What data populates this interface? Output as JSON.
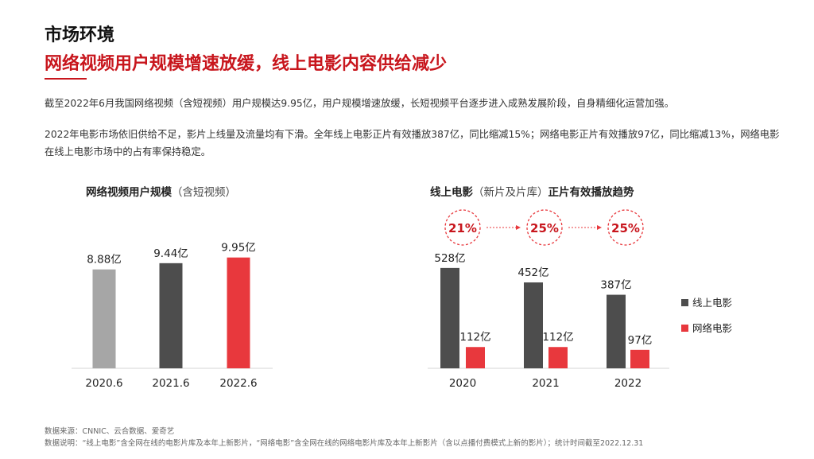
{
  "header": {
    "section": "市场环境",
    "headline": "网络视频用户规模增速放缓，线上电影内容供给减少"
  },
  "paragraphs": [
    "截至2022年6月我国网络视频（含短视频）用户规模达9.95亿，用户规模增速放缓，长短视频平台逐步进入成熟发展阶段，自身精细化运营加强。",
    "2022年电影市场依旧供给不足，影片上线量及流量均有下滑。全年线上电影正片有效播放387亿，同比缩减15%；网络电影正片有效播放97亿，同比缩减13%，网络电影在线上电影市场中的占有率保持稳定。"
  ],
  "colors": {
    "accent": "#c8161d",
    "red_bar": "#e8383d",
    "dark_bar": "#4d4d4d",
    "grey_bar": "#a6a6a6"
  },
  "chart_data": [
    {
      "type": "bar",
      "title_bold": "网络视频用户规模",
      "title_note": "（含短视频）",
      "categories": [
        "2020.6",
        "2021.6",
        "2022.6"
      ],
      "values": [
        8.88,
        9.44,
        9.95
      ],
      "value_labels": [
        "8.88亿",
        "9.44亿",
        "9.95亿"
      ],
      "bar_colors": [
        "#a6a6a6",
        "#4d4d4d",
        "#e8383d"
      ],
      "ylim": [
        0,
        12.5
      ]
    },
    {
      "type": "bar",
      "title_bold_a": "线上电影",
      "title_note": "（新片及片库）",
      "title_bold_b": "正片有效播放趋势",
      "categories": [
        "2020",
        "2021",
        "2022"
      ],
      "series": [
        {
          "name": "线上电影",
          "values": [
            528,
            452,
            387
          ],
          "labels": [
            "528亿",
            "452亿",
            "387亿"
          ],
          "color": "#4d4d4d"
        },
        {
          "name": "网络电影",
          "values": [
            112,
            112,
            97
          ],
          "labels": [
            "112亿",
            "112亿",
            "97亿"
          ],
          "color": "#e8383d"
        }
      ],
      "annotations": [
        "21%",
        "25%",
        "25%"
      ],
      "legend": "right",
      "ylim": [
        0,
        720
      ]
    }
  ],
  "footer": {
    "source": "数据来源：CNNIC、云合数据、爱奇艺",
    "note": "数据说明：“线上电影”含全网在线的电影片库及本年上新影片，“网络电影”含全网在线的网络电影片库及本年上新影片（含以点播付费模式上新的影片）；统计时间截至2022.12.31"
  }
}
